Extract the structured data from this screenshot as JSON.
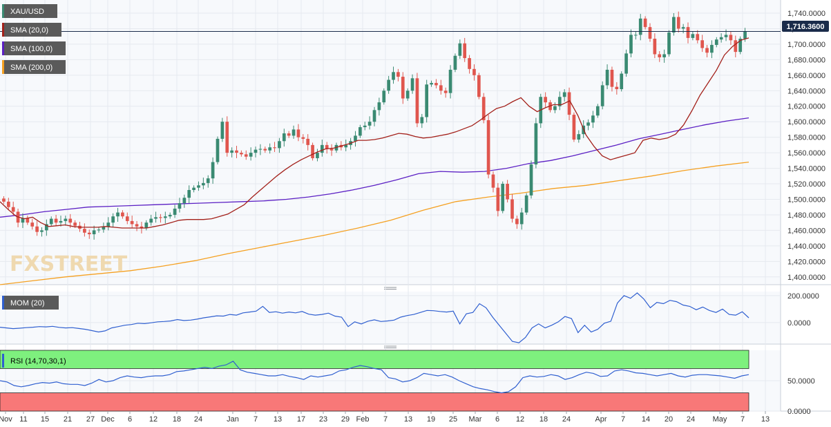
{
  "colors": {
    "background": "#ffffff",
    "plot_background": "#f7f9fc",
    "grid": "#e6e9ef",
    "up_candle": "#3a8a72",
    "down_candle": "#e0564e",
    "sma20": "#a3201a",
    "sma100": "#5b1fc4",
    "sma200": "#f5a020",
    "mom_line": "#2f5fd0",
    "rsi_line": "#2f5fd0",
    "rsi_overbought_zone": "#7ef07e",
    "rsi_oversold_zone": "#f87878",
    "price_line": "#1a2b4a",
    "price_badge": "#1a2b4a",
    "legend_badge": "#5a5a5a",
    "watermark": "#efd9b0"
  },
  "watermark": "FXSTREET",
  "price_badge": "1,716.3600",
  "chart_data": [
    {
      "type": "candlestick",
      "legend": [
        "XAU/USD",
        "SMA (20,0)",
        "SMA (100,0)",
        "SMA (200,0)"
      ],
      "yticks": [
        "1,740.0000",
        "1,720.0000",
        "1,700.0000",
        "1,680.0000",
        "1,660.0000",
        "1,640.0000",
        "1,620.0000",
        "1,600.0000",
        "1,580.0000",
        "1,560.0000",
        "1,540.0000",
        "1,520.0000",
        "1,500.0000",
        "1,480.0000",
        "1,460.0000",
        "1,440.0000",
        "1,420.0000",
        "1,400.0000"
      ],
      "ylim": [
        1390,
        1748
      ],
      "last_price": 1716.36,
      "candle_closes": [
        1497,
        1490,
        1484,
        1470,
        1476,
        1470,
        1465,
        1458,
        1460,
        1468,
        1475,
        1470,
        1472,
        1475,
        1470,
        1466,
        1462,
        1457,
        1455,
        1460,
        1461,
        1465,
        1470,
        1478,
        1483,
        1478,
        1472,
        1468,
        1465,
        1463,
        1470,
        1475,
        1477,
        1476,
        1478,
        1480,
        1488,
        1495,
        1502,
        1512,
        1515,
        1518,
        1521,
        1527,
        1548,
        1578,
        1600,
        1560,
        1563,
        1560,
        1558,
        1555,
        1560,
        1564,
        1565,
        1563,
        1567,
        1566,
        1575,
        1585,
        1582,
        1590,
        1580,
        1578,
        1570,
        1553,
        1560,
        1570,
        1565,
        1563,
        1570,
        1567,
        1570,
        1575,
        1582,
        1593,
        1595,
        1600,
        1615,
        1625,
        1640,
        1654,
        1664,
        1658,
        1630,
        1640,
        1656,
        1598,
        1606,
        1648,
        1650,
        1647,
        1640,
        1637,
        1667,
        1685,
        1701,
        1682,
        1668,
        1660,
        1632,
        1602,
        1532,
        1515,
        1485,
        1520,
        1500,
        1475,
        1468,
        1483,
        1505,
        1545,
        1598,
        1632,
        1625,
        1615,
        1620,
        1632,
        1638,
        1609,
        1577,
        1584,
        1595,
        1599,
        1608,
        1620,
        1647,
        1667,
        1645,
        1642,
        1662,
        1688,
        1712,
        1712,
        1733,
        1722,
        1707,
        1687,
        1683,
        1687,
        1715,
        1735,
        1720,
        1722,
        1708,
        1713,
        1705,
        1695,
        1689,
        1699,
        1706,
        1709,
        1712,
        1705,
        1690,
        1707,
        1716
      ],
      "sma20": [
        1497,
        1487,
        1478,
        1475,
        1477,
        1470,
        1465,
        1466,
        1467,
        1465,
        1464,
        1464,
        1464,
        1465,
        1464,
        1463,
        1463,
        1463,
        1463,
        1465,
        1467,
        1470,
        1473,
        1474,
        1474,
        1474,
        1475,
        1478,
        1481,
        1487,
        1493,
        1503,
        1512,
        1521,
        1530,
        1538,
        1545,
        1551,
        1556,
        1561,
        1565,
        1566,
        1569,
        1572,
        1576,
        1576,
        1577,
        1579,
        1582,
        1585,
        1584,
        1581,
        1579,
        1580,
        1582,
        1584,
        1587,
        1591,
        1595,
        1602,
        1610,
        1617,
        1620,
        1626,
        1631,
        1620,
        1613,
        1618,
        1622,
        1622,
        1627,
        1608,
        1583,
        1568,
        1556,
        1551,
        1554,
        1557,
        1560,
        1576,
        1579,
        1577,
        1579,
        1584,
        1596,
        1614,
        1634,
        1650,
        1666,
        1686,
        1697,
        1705,
        1708
      ],
      "sma100": [
        1477,
        1480,
        1484,
        1487,
        1490,
        1491,
        1492,
        1493,
        1494,
        1495,
        1496,
        1497,
        1498,
        1500,
        1503,
        1507,
        1512,
        1518,
        1525,
        1533,
        1536,
        1535,
        1536,
        1540,
        1546,
        1550,
        1556,
        1563,
        1570,
        1578,
        1584,
        1590,
        1596,
        1601,
        1605
      ],
      "sma200": [
        1390,
        1395,
        1400,
        1404,
        1408,
        1414,
        1421,
        1430,
        1438,
        1446,
        1454,
        1463,
        1473,
        1486,
        1497,
        1503,
        1508,
        1514,
        1518,
        1524,
        1530,
        1537,
        1543,
        1548
      ],
      "xticks": [
        "Nov",
        "11",
        "15",
        "21",
        "27",
        "Dec",
        "6",
        "12",
        "18",
        "24",
        "Jan",
        "7",
        "13",
        "17",
        "23",
        "29",
        "Feb",
        "7",
        "13",
        "19",
        "25",
        "Mar",
        "6",
        "12",
        "18",
        "24",
        "Apr",
        "7",
        "14",
        "20",
        "24",
        "May",
        "7",
        "13"
      ]
    },
    {
      "type": "line",
      "legend": [
        "MOM (20)"
      ],
      "yticks": [
        "200.0000",
        "0.0000"
      ],
      "ylim": [
        -160,
        230
      ],
      "series": [
        {
          "name": "MOM (20)",
          "values": [
            -35,
            -40,
            -45,
            -42,
            -38,
            -35,
            -30,
            -32,
            -28,
            -36,
            -40,
            -38,
            -44,
            -50,
            -60,
            -70,
            -62,
            -40,
            -30,
            -20,
            -15,
            -5,
            -8,
            -2,
            5,
            8,
            12,
            22,
            15,
            18,
            25,
            35,
            42,
            50,
            48,
            60,
            55,
            72,
            78,
            85,
            120,
            75,
            80,
            70,
            78,
            72,
            82,
            62,
            55,
            60,
            70,
            48,
            40,
            -30,
            5,
            -10,
            10,
            20,
            8,
            12,
            18,
            40,
            52,
            60,
            75,
            90,
            88,
            82,
            78,
            85,
            -10,
            65,
            75,
            140,
            110,
            40,
            -20,
            -80,
            -140,
            -150,
            -110,
            -40,
            -10,
            -40,
            -20,
            5,
            45,
            30,
            -75,
            -20,
            -70,
            -50,
            -5,
            10,
            145,
            200,
            180,
            220,
            175,
            110,
            150,
            140,
            165,
            155,
            130,
            120,
            95,
            115,
            90,
            75,
            100,
            60,
            55,
            80,
            35
          ]
        }
      ],
      "xticks": [
        "Nov",
        "11",
        "15",
        "21",
        "27",
        "Dec",
        "6",
        "12",
        "18",
        "24",
        "Jan",
        "7",
        "13",
        "17",
        "23",
        "29",
        "Feb",
        "7",
        "13",
        "19",
        "25",
        "Mar",
        "6",
        "12",
        "18",
        "24",
        "Apr",
        "7",
        "14",
        "20",
        "24",
        "May",
        "7",
        "13"
      ]
    },
    {
      "type": "line",
      "legend": [
        "RSI (14,70,30,1)"
      ],
      "yticks": [
        "50.0000",
        "0.0000"
      ],
      "ylim": [
        0,
        100
      ],
      "zones": {
        "overbought": 70,
        "oversold": 30
      },
      "series": [
        {
          "name": "RSI (14,70,30,1)",
          "values": [
            50,
            48,
            42,
            40,
            42,
            45,
            47,
            46,
            48,
            45,
            44,
            44,
            42,
            46,
            52,
            48,
            50,
            55,
            58,
            56,
            55,
            57,
            58,
            58,
            60,
            65,
            66,
            68,
            70,
            72,
            70,
            74,
            76,
            82,
            68,
            64,
            62,
            60,
            58,
            58,
            60,
            57,
            55,
            52,
            58,
            56,
            58,
            60,
            66,
            68,
            72,
            75,
            73,
            70,
            68,
            55,
            53,
            48,
            50,
            55,
            62,
            60,
            58,
            60,
            56,
            50,
            45,
            40,
            37,
            35,
            32,
            30,
            32,
            40,
            55,
            58,
            56,
            57,
            60,
            58,
            52,
            55,
            60,
            64,
            62,
            57,
            58,
            66,
            68,
            66,
            63,
            62,
            60,
            58,
            60,
            62,
            58,
            56,
            59,
            60,
            60,
            59,
            58,
            56,
            54,
            58,
            60
          ]
        }
      ],
      "xticks": [
        "Nov",
        "11",
        "15",
        "21",
        "27",
        "Dec",
        "6",
        "12",
        "18",
        "24",
        "Jan",
        "7",
        "13",
        "17",
        "23",
        "29",
        "Feb",
        "7",
        "13",
        "19",
        "25",
        "Mar",
        "6",
        "12",
        "18",
        "24",
        "Apr",
        "7",
        "14",
        "20",
        "24",
        "May",
        "7",
        "13"
      ]
    }
  ]
}
